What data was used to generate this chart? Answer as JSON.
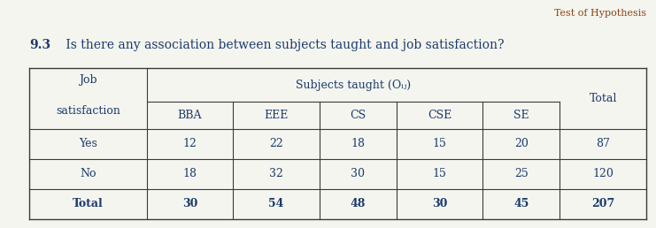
{
  "title_top_right": "Test of Hypothesis",
  "question_number": "9.3",
  "question_rest": " Is there any association between subjects taught and job satisfaction?",
  "header_job": "Job",
  "header_satisfaction": "satisfaction",
  "header_subjects": "Subjects taught (Oᵢⱼ)",
  "header_subcols": [
    "BBA",
    "EEE",
    "CS",
    "CSE",
    "SE"
  ],
  "header_total": "Total",
  "data_rows": [
    {
      "label": "Yes",
      "values": [
        12,
        22,
        18,
        15,
        20
      ],
      "total": 87
    },
    {
      "label": "No",
      "values": [
        18,
        32,
        30,
        15,
        25
      ],
      "total": 120
    }
  ],
  "total_row": {
    "label": "Total",
    "values": [
      30,
      54,
      48,
      30,
      45
    ],
    "total": 207
  },
  "text_color": "#1a3a6b",
  "line_color": "#3a3a3a",
  "bg_color": "#f5f5f0",
  "title_color": "#8B4513",
  "figsize": [
    7.41,
    2.58
  ],
  "dpi": 100
}
